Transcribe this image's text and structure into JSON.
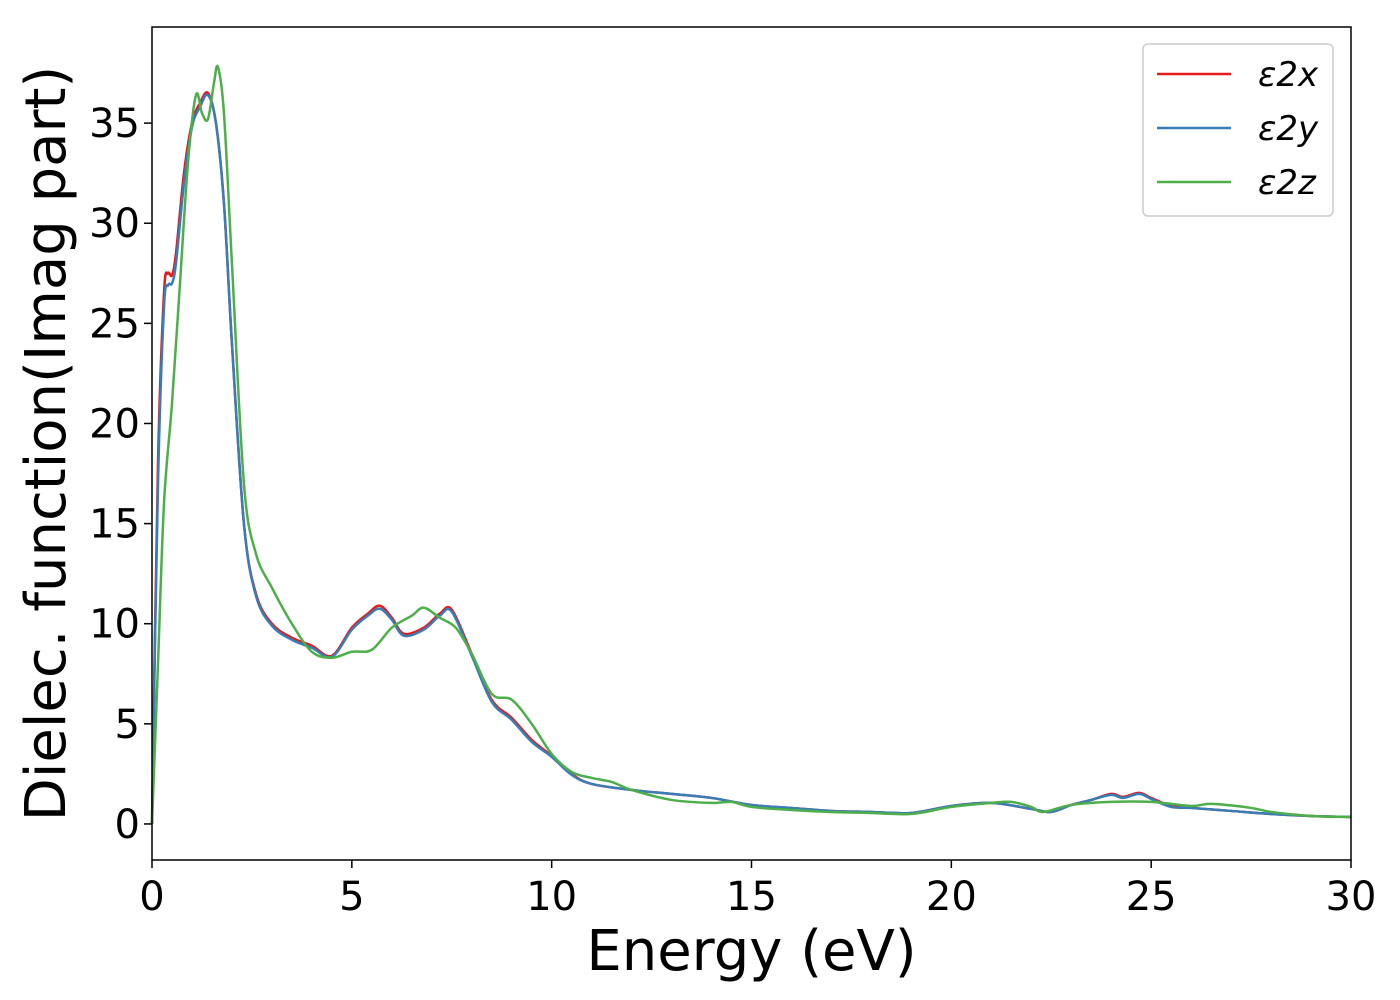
{
  "chart_data": {
    "type": "line",
    "title": "",
    "xlabel": "Energy (eV)",
    "ylabel": "Dielec. function(Imag part)",
    "xlim": [
      0,
      30
    ],
    "ylim": [
      -1.8,
      39.8
    ],
    "xticks": [
      0,
      5,
      10,
      15,
      20,
      25,
      30
    ],
    "yticks": [
      0,
      5,
      10,
      15,
      20,
      25,
      30,
      35
    ],
    "grid": false,
    "legend_position": "top-right",
    "series": [
      {
        "name": "ε2x",
        "color": "#e41a1c",
        "x": [
          0,
          0.15,
          0.3,
          0.4,
          0.5,
          0.6,
          0.8,
          1.0,
          1.2,
          1.4,
          1.6,
          1.8,
          2.0,
          2.3,
          2.6,
          3.0,
          3.5,
          4.0,
          4.5,
          5.0,
          5.4,
          5.7,
          6.0,
          6.3,
          6.8,
          7.2,
          7.5,
          8.0,
          8.5,
          9.0,
          9.5,
          10.0,
          10.5,
          11.0,
          12.0,
          13.0,
          14.0,
          15.0,
          16.0,
          17.0,
          18.0,
          19.0,
          20.0,
          21.0,
          22.0,
          22.5,
          23.0,
          23.5,
          24.0,
          24.3,
          24.7,
          25.0,
          25.5,
          26.0,
          27.0,
          28.0,
          29.0,
          30.0
        ],
        "y": [
          0,
          18,
          26.5,
          27.5,
          27.4,
          28.5,
          32.5,
          35.0,
          36.0,
          36.5,
          35.0,
          31.0,
          24.0,
          15.0,
          11.5,
          10.0,
          9.3,
          8.9,
          8.4,
          9.8,
          10.5,
          10.9,
          10.3,
          9.5,
          9.8,
          10.5,
          10.7,
          8.5,
          6.2,
          5.3,
          4.2,
          3.4,
          2.5,
          2.0,
          1.7,
          1.5,
          1.3,
          0.95,
          0.8,
          0.65,
          0.6,
          0.55,
          0.9,
          1.05,
          0.75,
          0.6,
          0.95,
          1.2,
          1.5,
          1.35,
          1.55,
          1.3,
          0.9,
          0.8,
          0.65,
          0.5,
          0.4,
          0.35
        ]
      },
      {
        "name": "ε2y",
        "color": "#377eb8",
        "x": [
          0,
          0.15,
          0.3,
          0.4,
          0.5,
          0.6,
          0.8,
          1.0,
          1.2,
          1.4,
          1.6,
          1.8,
          2.0,
          2.3,
          2.6,
          3.0,
          3.5,
          4.0,
          4.5,
          5.0,
          5.4,
          5.7,
          6.0,
          6.3,
          6.8,
          7.2,
          7.5,
          8.0,
          8.5,
          9.0,
          9.5,
          10.0,
          10.5,
          11.0,
          12.0,
          13.0,
          14.0,
          15.0,
          16.0,
          17.0,
          18.0,
          19.0,
          20.0,
          21.0,
          22.0,
          22.5,
          23.0,
          23.5,
          24.0,
          24.3,
          24.7,
          25.0,
          25.5,
          26.0,
          27.0,
          28.0,
          29.0,
          30.0
        ],
        "y": [
          0,
          17,
          25.8,
          26.9,
          27.0,
          28.0,
          32.0,
          34.8,
          35.8,
          36.4,
          35.0,
          31.0,
          24.0,
          15.0,
          11.4,
          9.9,
          9.2,
          8.8,
          8.35,
          9.7,
          10.4,
          10.75,
          10.2,
          9.4,
          9.7,
          10.4,
          10.6,
          8.4,
          6.1,
          5.2,
          4.1,
          3.35,
          2.45,
          2.0,
          1.7,
          1.5,
          1.3,
          0.95,
          0.8,
          0.65,
          0.6,
          0.55,
          0.9,
          1.05,
          0.75,
          0.6,
          0.95,
          1.2,
          1.45,
          1.3,
          1.5,
          1.25,
          0.85,
          0.8,
          0.65,
          0.5,
          0.4,
          0.35
        ]
      },
      {
        "name": "ε2z",
        "color": "#4daf4a",
        "x": [
          0,
          0.15,
          0.3,
          0.5,
          0.7,
          0.9,
          1.1,
          1.25,
          1.4,
          1.55,
          1.65,
          1.8,
          2.0,
          2.3,
          2.6,
          3.0,
          3.5,
          4.0,
          4.5,
          5.0,
          5.5,
          6.0,
          6.5,
          6.8,
          7.2,
          7.6,
          8.0,
          8.5,
          9.0,
          9.5,
          10.0,
          10.5,
          11.0,
          11.5,
          12.0,
          13.0,
          14.0,
          14.5,
          15.0,
          16.0,
          17.0,
          18.0,
          19.0,
          20.0,
          21.0,
          21.5,
          22.0,
          22.3,
          23.0,
          24.0,
          25.0,
          26.0,
          26.5,
          27.5,
          28.0,
          29.0,
          30.0
        ],
        "y": [
          0,
          8,
          16,
          21,
          27,
          33,
          36.4,
          35.5,
          35.2,
          37.0,
          37.8,
          35.5,
          28.0,
          17.0,
          13.5,
          11.8,
          10.0,
          8.6,
          8.3,
          8.6,
          8.7,
          9.8,
          10.4,
          10.8,
          10.3,
          9.8,
          8.5,
          6.5,
          6.2,
          5.0,
          3.5,
          2.6,
          2.3,
          2.1,
          1.7,
          1.2,
          1.05,
          1.1,
          0.85,
          0.7,
          0.6,
          0.55,
          0.5,
          0.85,
          1.05,
          1.1,
          0.85,
          0.6,
          0.95,
          1.1,
          1.1,
          0.9,
          1.0,
          0.8,
          0.6,
          0.4,
          0.35
        ]
      }
    ]
  }
}
